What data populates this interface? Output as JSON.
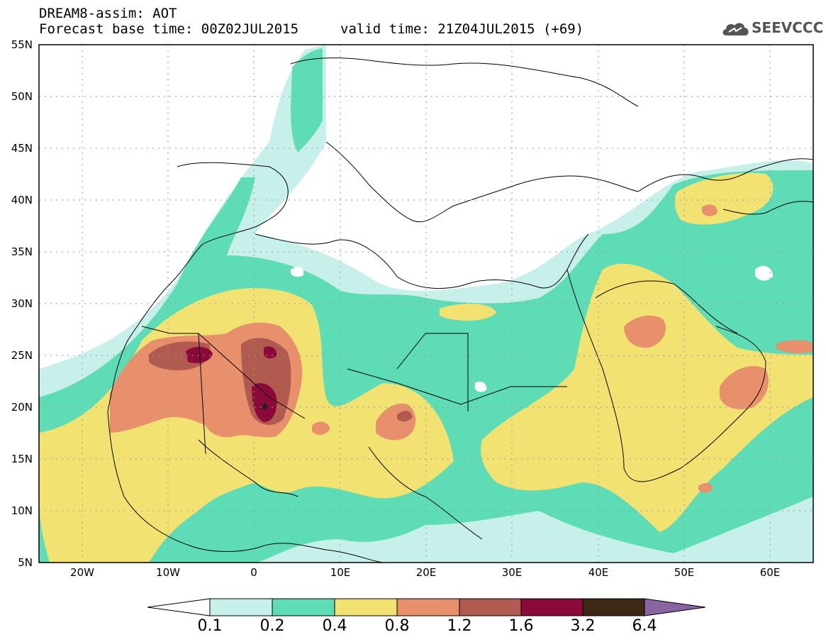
{
  "header": {
    "line1": "DREAM8-assim: AOT",
    "line2": "Forecast base time: 00Z02JUL2015",
    "line3": "valid time: 21Z04JUL2015 (+69)"
  },
  "logo": {
    "text": "SEEVCCC",
    "icon": "cloud-logo-icon"
  },
  "map": {
    "lon_range": [
      -25,
      65
    ],
    "lat_range": [
      5,
      55
    ],
    "y_ticks": [
      "55N",
      "50N",
      "45N",
      "40N",
      "35N",
      "30N",
      "25N",
      "20N",
      "15N",
      "10N",
      "5N"
    ],
    "x_ticks": [
      "20W",
      "10W",
      "0",
      "10E",
      "20E",
      "30E",
      "40E",
      "50E",
      "60E"
    ]
  },
  "colorbar": {
    "labels": [
      "0.1",
      "0.2",
      "0.4",
      "0.8",
      "1.2",
      "1.6",
      "3.2",
      "6.4"
    ],
    "colors": [
      "#c8f0ea",
      "#5ddcb6",
      "#f2e272",
      "#e8906c",
      "#b05a50",
      "#8c0a3a",
      "#3c2814",
      "#8a64a0"
    ]
  }
}
